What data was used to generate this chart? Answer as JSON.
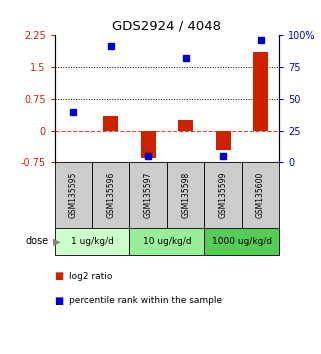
{
  "title": "GDS2924 / 4048",
  "samples": [
    "GSM135595",
    "GSM135596",
    "GSM135597",
    "GSM135598",
    "GSM135599",
    "GSM135600"
  ],
  "log2_ratio": [
    -0.02,
    0.35,
    -0.65,
    0.25,
    -0.45,
    1.85
  ],
  "percentile_rank": [
    40,
    92,
    5,
    82,
    5,
    96
  ],
  "left_ylim": [
    -0.75,
    2.25
  ],
  "right_ylim": [
    0,
    100
  ],
  "left_yticks": [
    -0.75,
    0,
    0.75,
    1.5,
    2.25
  ],
  "right_yticks": [
    0,
    25,
    50,
    75,
    100
  ],
  "left_ytick_labels": [
    "-0.75",
    "0",
    "0.75",
    "1.5",
    "2.25"
  ],
  "right_ytick_labels": [
    "0",
    "25",
    "50",
    "75",
    "100%"
  ],
  "hlines_dotted": [
    0.75,
    1.5
  ],
  "hline_dashed": 0,
  "bar_color": "#cc2200",
  "dot_color": "#0000cc",
  "dose_groups": [
    {
      "label": "1 ug/kg/d",
      "indices": [
        0,
        1
      ],
      "color": "#ccffcc"
    },
    {
      "label": "10 ug/kg/d",
      "indices": [
        2,
        3
      ],
      "color": "#99ee99"
    },
    {
      "label": "1000 ug/kg/d",
      "indices": [
        4,
        5
      ],
      "color": "#55cc55"
    }
  ],
  "dose_label": "dose",
  "legend_bar_label": "log2 ratio",
  "legend_dot_label": "percentile rank within the sample",
  "sample_box_color": "#cccccc",
  "background_color": "#ffffff"
}
